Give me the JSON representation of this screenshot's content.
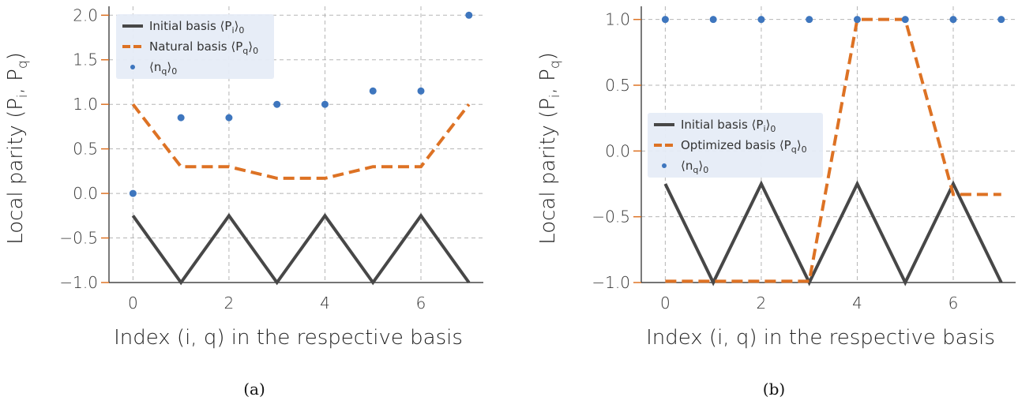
{
  "colors": {
    "dark": "#474747",
    "orange": "#dd7224",
    "blue": "#3e76be",
    "grid": "#b5b5b5",
    "legend_bg": "#e6ecf7"
  },
  "chart_data": [
    {
      "type": "line",
      "caption": "(a)",
      "xlabel": "Index (i, q) in the respective basis",
      "ylabel": "Local parity (P",
      "ylabel_sub1": "i",
      "ylabel_mid": ", P",
      "ylabel_sub2": "q",
      "ylabel_end": ")",
      "xlim": [
        -0.5,
        7.3
      ],
      "ylim": [
        -1.0,
        2.1
      ],
      "xticks": [
        0,
        2,
        4,
        6
      ],
      "yticks": [
        -1.0,
        -0.5,
        0.0,
        0.5,
        1.0,
        1.5,
        2.0
      ],
      "ytick_labels": [
        "−1.0",
        "−0.5",
        "0.0",
        "0.5",
        "1.0",
        "1.5",
        "2.0"
      ],
      "grid": true,
      "legend_placement": "upper-left",
      "x": [
        0,
        1,
        2,
        3,
        4,
        5,
        6,
        7
      ],
      "series": [
        {
          "name": "Initial basis ⟨P",
          "sub": "i",
          "close": "⟩",
          "sub0": "0",
          "style": "solid-line",
          "values": [
            -0.25,
            -1.0,
            -0.25,
            -1.0,
            -0.25,
            -1.0,
            -0.25,
            -1.0
          ]
        },
        {
          "name": "Natural basis ⟨P",
          "sub": "q",
          "close": "⟩",
          "sub0": "0",
          "style": "dashed-line",
          "values": [
            1.0,
            0.3,
            0.3,
            0.17,
            0.17,
            0.3,
            0.3,
            1.0
          ]
        },
        {
          "name": "⟨n",
          "sub": "q",
          "close": "⟩",
          "sub0": "0",
          "style": "markers",
          "values": [
            0.0,
            0.85,
            0.85,
            1.0,
            1.0,
            1.15,
            1.15,
            2.0
          ]
        }
      ]
    },
    {
      "type": "line",
      "caption": "(b)",
      "xlabel": "Index (i, q) in the respective basis",
      "ylabel": "Local parity (P",
      "ylabel_sub1": "i",
      "ylabel_mid": ", P",
      "ylabel_sub2": "q",
      "ylabel_end": ")",
      "xlim": [
        -0.5,
        7.3
      ],
      "ylim": [
        -1.0,
        1.1
      ],
      "xticks": [
        0,
        2,
        4,
        6
      ],
      "yticks": [
        -1.0,
        -0.5,
        0.0,
        0.5,
        1.0
      ],
      "ytick_labels": [
        "−1.0",
        "−0.5",
        "0.0",
        "0.5",
        "1.0"
      ],
      "grid": true,
      "legend_placement": "center-left",
      "x": [
        0,
        1,
        2,
        3,
        4,
        5,
        6,
        7
      ],
      "series": [
        {
          "name": "Initial basis ⟨P",
          "sub": "i",
          "close": "⟩",
          "sub0": "0",
          "style": "solid-line",
          "values": [
            -0.25,
            -1.0,
            -0.25,
            -1.0,
            -0.25,
            -1.0,
            -0.25,
            -1.0
          ]
        },
        {
          "name": "Optimized basis ⟨P",
          "sub": "q",
          "close": "⟩",
          "sub0": "0",
          "style": "dashed-line",
          "values": [
            -0.99,
            -0.99,
            -0.99,
            -0.99,
            1.0,
            1.0,
            -0.33,
            -0.33
          ]
        },
        {
          "name": "⟨n",
          "sub": "q",
          "close": "⟩",
          "sub0": "0",
          "style": "markers",
          "values": [
            1.0,
            1.0,
            1.0,
            1.0,
            1.0,
            1.0,
            1.0,
            1.0
          ]
        }
      ]
    }
  ]
}
